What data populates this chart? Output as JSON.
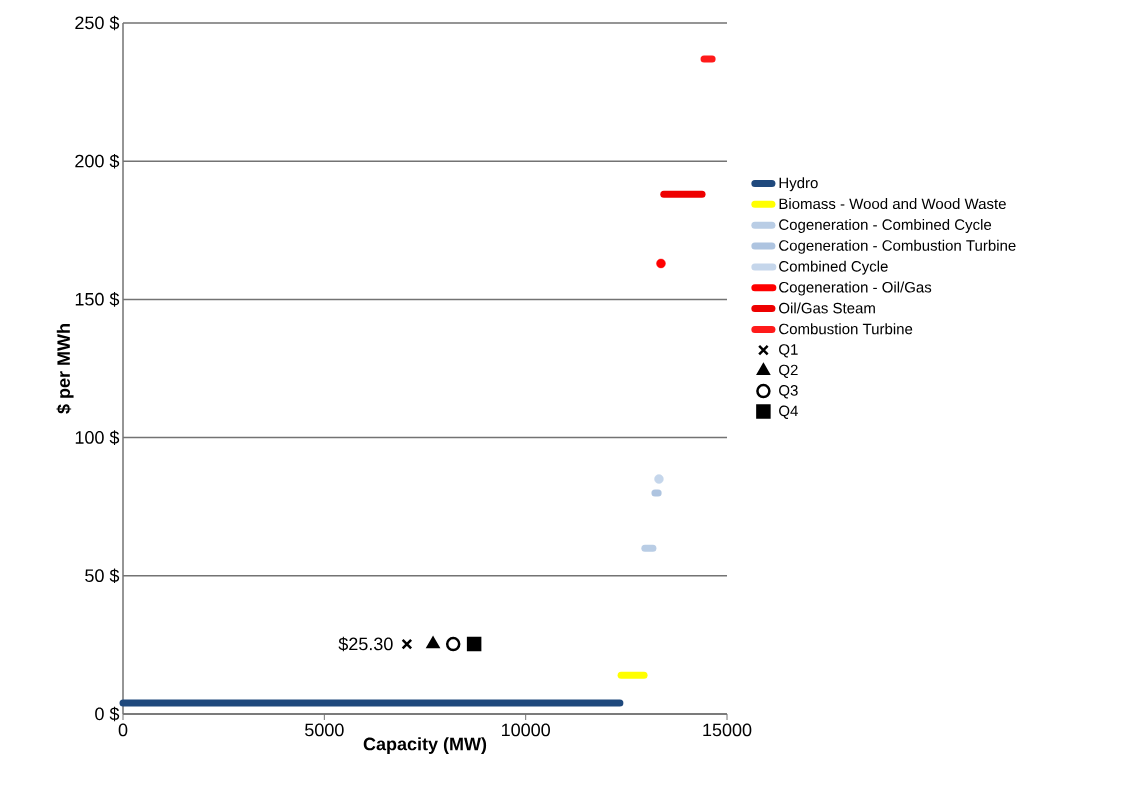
{
  "chart_data": {
    "type": "line",
    "xlabel": "Capacity (MW)",
    "ylabel": "$ per MWh",
    "xlim": [
      0,
      15000
    ],
    "xticks": [
      0,
      5000,
      10000,
      15000
    ],
    "ylim": [
      0,
      250
    ],
    "yticks": [
      {
        "value": 0,
        "label": "0 $"
      },
      {
        "value": 50,
        "label": "50 $"
      },
      {
        "value": 100,
        "label": "100 $"
      },
      {
        "value": 150,
        "label": "150 $"
      },
      {
        "value": 200,
        "label": "200 $"
      },
      {
        "value": 250,
        "label": "250 $"
      }
    ],
    "grid": "y",
    "legend": "right",
    "series": [
      {
        "name": "Hydro",
        "color": "#1f497d",
        "x": [
          0,
          12340
        ],
        "values": [
          4,
          4
        ]
      },
      {
        "name": "Biomass - Wood and Wood Waste",
        "color": "#ffff00",
        "x": [
          12370,
          12940
        ],
        "values": [
          14,
          14
        ]
      },
      {
        "name": "Cogeneration - Combined Cycle",
        "color": "#b9cde5",
        "x": [
          12960,
          13160
        ],
        "values": [
          60,
          60
        ]
      },
      {
        "name": "Cogeneration - Combustion Turbine",
        "color": "#aec4e0",
        "x": [
          13210,
          13290
        ],
        "values": [
          80,
          80
        ]
      },
      {
        "name": "Combined Cycle",
        "type": "scatter",
        "color": "#c5d6eb",
        "x": [
          13310
        ],
        "values": [
          85
        ]
      },
      {
        "name": "Cogeneration - Oil/Gas",
        "color": "#ff0000",
        "type": "scatter",
        "x": [
          13360
        ],
        "values": [
          163
        ]
      },
      {
        "name": "Oil/Gas Steam",
        "color": "#ee0000",
        "x": [
          13430,
          14380
        ],
        "values": [
          188,
          188
        ]
      },
      {
        "name": "Combustion Turbine",
        "color": "#ff1a1a",
        "x": [
          14430,
          14630
        ],
        "values": [
          237,
          237
        ]
      },
      {
        "name": "Q1",
        "type": "scatter",
        "marker": "cross",
        "color": "#000000",
        "x": [
          7050
        ],
        "values": [
          25.3
        ]
      },
      {
        "name": "Q2",
        "type": "scatter",
        "marker": "triangle",
        "color": "#000000",
        "x": [
          7700
        ],
        "values": [
          25.3
        ]
      },
      {
        "name": "Q3",
        "type": "scatter",
        "marker": "circle",
        "color": "#000000",
        "x": [
          8200
        ],
        "values": [
          25.3
        ]
      },
      {
        "name": "Q4",
        "type": "scatter",
        "marker": "square",
        "color": "#000000",
        "x": [
          8720
        ],
        "values": [
          25.3
        ]
      }
    ],
    "annotations": [
      {
        "text": "$25.30",
        "x": 7050,
        "y": 25.3
      }
    ]
  }
}
